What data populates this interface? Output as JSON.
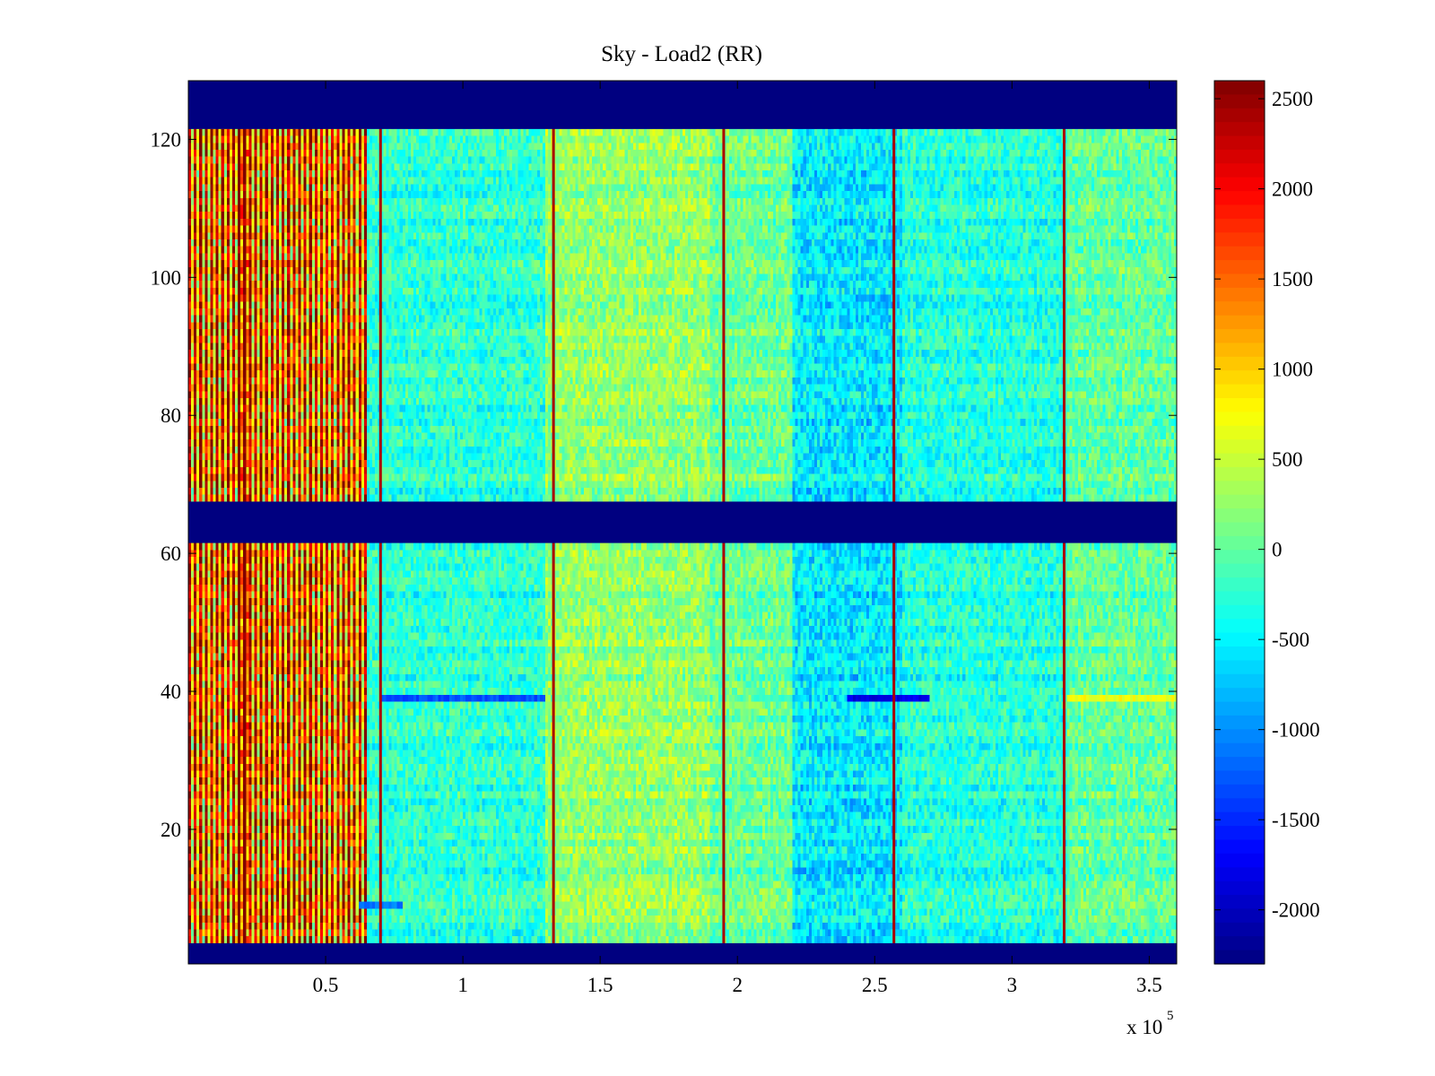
{
  "chart_data": {
    "type": "heatmap",
    "title": "Sky - Load2 (RR)",
    "xlabel": "",
    "ylabel": "",
    "x_multiplier_label": "x 10",
    "x_multiplier_exponent": "5",
    "xlim": [
      0,
      3.6
    ],
    "ylim": [
      0.5,
      128.5
    ],
    "x_ticks": [
      {
        "value": 0.5,
        "label": "0.5"
      },
      {
        "value": 1,
        "label": "1"
      },
      {
        "value": 1.5,
        "label": "1.5"
      },
      {
        "value": 2,
        "label": "2"
      },
      {
        "value": 2.5,
        "label": "2.5"
      },
      {
        "value": 3,
        "label": "3"
      },
      {
        "value": 3.5,
        "label": "3.5"
      }
    ],
    "y_ticks": [
      {
        "value": 20,
        "label": "20"
      },
      {
        "value": 40,
        "label": "40"
      },
      {
        "value": 60,
        "label": "60"
      },
      {
        "value": 80,
        "label": "80"
      },
      {
        "value": 100,
        "label": "100"
      },
      {
        "value": 120,
        "label": "120"
      }
    ],
    "colorbar": {
      "colormap": "jet",
      "range": [
        -2300,
        2600
      ],
      "ticks": [
        {
          "value": 2500,
          "label": "2500"
        },
        {
          "value": 2000,
          "label": "2000"
        },
        {
          "value": 1500,
          "label": "1500"
        },
        {
          "value": 1000,
          "label": "1000"
        },
        {
          "value": 500,
          "label": "500"
        },
        {
          "value": 0,
          "label": "0"
        },
        {
          "value": -500,
          "label": "-500"
        },
        {
          "value": -1000,
          "label": "-1000"
        },
        {
          "value": -1500,
          "label": "-1500"
        },
        {
          "value": -2000,
          "label": "-2000"
        }
      ]
    },
    "masked_channel_bands": [
      [
        0.5,
        3.5
      ],
      [
        61.5,
        67.5
      ],
      [
        121.5,
        128.5
      ]
    ],
    "masked_value": -2300,
    "vertical_spike_lines_x": [
      0.7,
      1.33,
      1.95,
      2.57,
      3.19
    ],
    "spike_value": 2400,
    "regions": [
      {
        "x_range": [
          0,
          0.65
        ],
        "mean": 1500,
        "pattern": "alternating columns",
        "amplitude": 1400
      },
      {
        "x_range": [
          0.65,
          1.3
        ],
        "mean": -250,
        "amplitude": 350
      },
      {
        "x_range": [
          1.3,
          1.9
        ],
        "mean": 250,
        "amplitude": 350
      },
      {
        "x_range": [
          1.9,
          2.2
        ],
        "mean": 50,
        "amplitude": 350
      },
      {
        "x_range": [
          2.2,
          2.6
        ],
        "mean": -550,
        "amplitude": 400
      },
      {
        "x_range": [
          2.6,
          3.2
        ],
        "mean": -300,
        "amplitude": 350
      },
      {
        "x_range": [
          3.2,
          3.6
        ],
        "mean": 0,
        "amplitude": 350
      }
    ],
    "row_artifacts": [
      {
        "y": 39,
        "x_range": [
          0.7,
          1.3
        ],
        "value": -1300
      },
      {
        "y": 39,
        "x_range": [
          2.4,
          2.7
        ],
        "value": -1800
      },
      {
        "y": 39,
        "x_range": [
          3.2,
          3.6
        ],
        "value": 700
      },
      {
        "y": 9,
        "x_range": [
          0.62,
          0.78
        ],
        "value": -1100
      }
    ]
  }
}
